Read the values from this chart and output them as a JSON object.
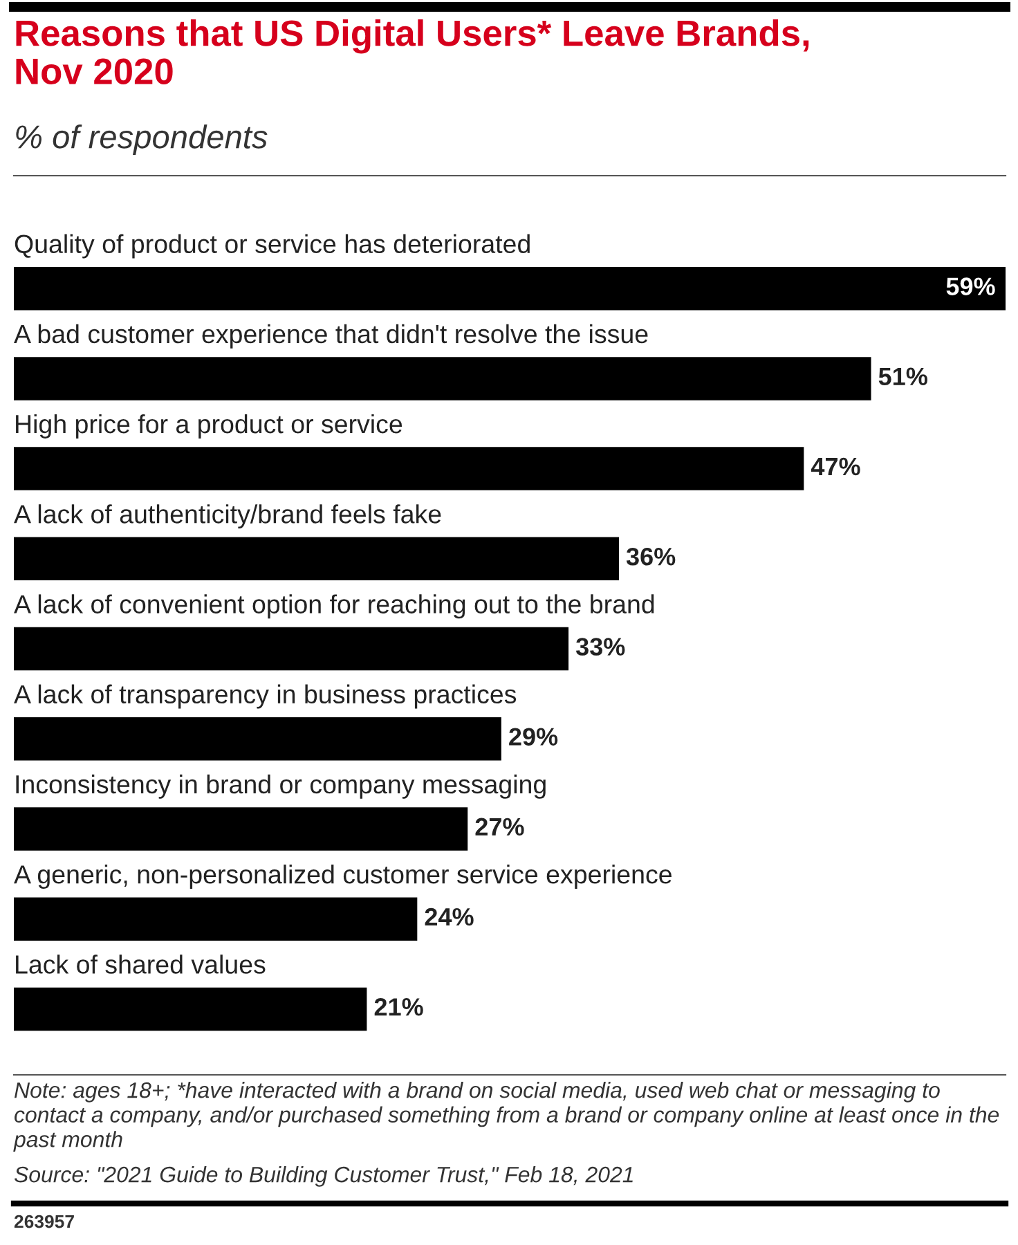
{
  "chart_data": {
    "type": "bar",
    "orientation": "horizontal",
    "title": "Reasons that US Digital Users* Leave Brands,\nNov 2020",
    "subtitle": "% of respondents",
    "categories": [
      "Quality of product or service has deteriorated",
      "A bad customer experience that didn't resolve the issue",
      "High price for a product or service",
      "A lack of authenticity/brand feels fake",
      "A lack of convenient option for reaching out to the brand",
      "A lack of transparency in business practices",
      "Inconsistency in brand or company messaging",
      "A generic, non-personalized customer service experience",
      "Lack of shared values"
    ],
    "values": [
      59,
      51,
      47,
      36,
      33,
      29,
      27,
      24,
      21
    ],
    "value_labels": [
      "59%",
      "51%",
      "47%",
      "36%",
      "33%",
      "29%",
      "27%",
      "24%",
      "21%"
    ],
    "color": "#000000",
    "annotations": [
      "Note: ages 18+; *have interacted with a brand on social media, used web chat or messaging to contact a company, and/or purchased something from a brand or company online at least once in the past month",
      "Source: \"2021 Guide to Building Customer Trust,\" Feb 18, 2021",
      "263957"
    ]
  }
}
